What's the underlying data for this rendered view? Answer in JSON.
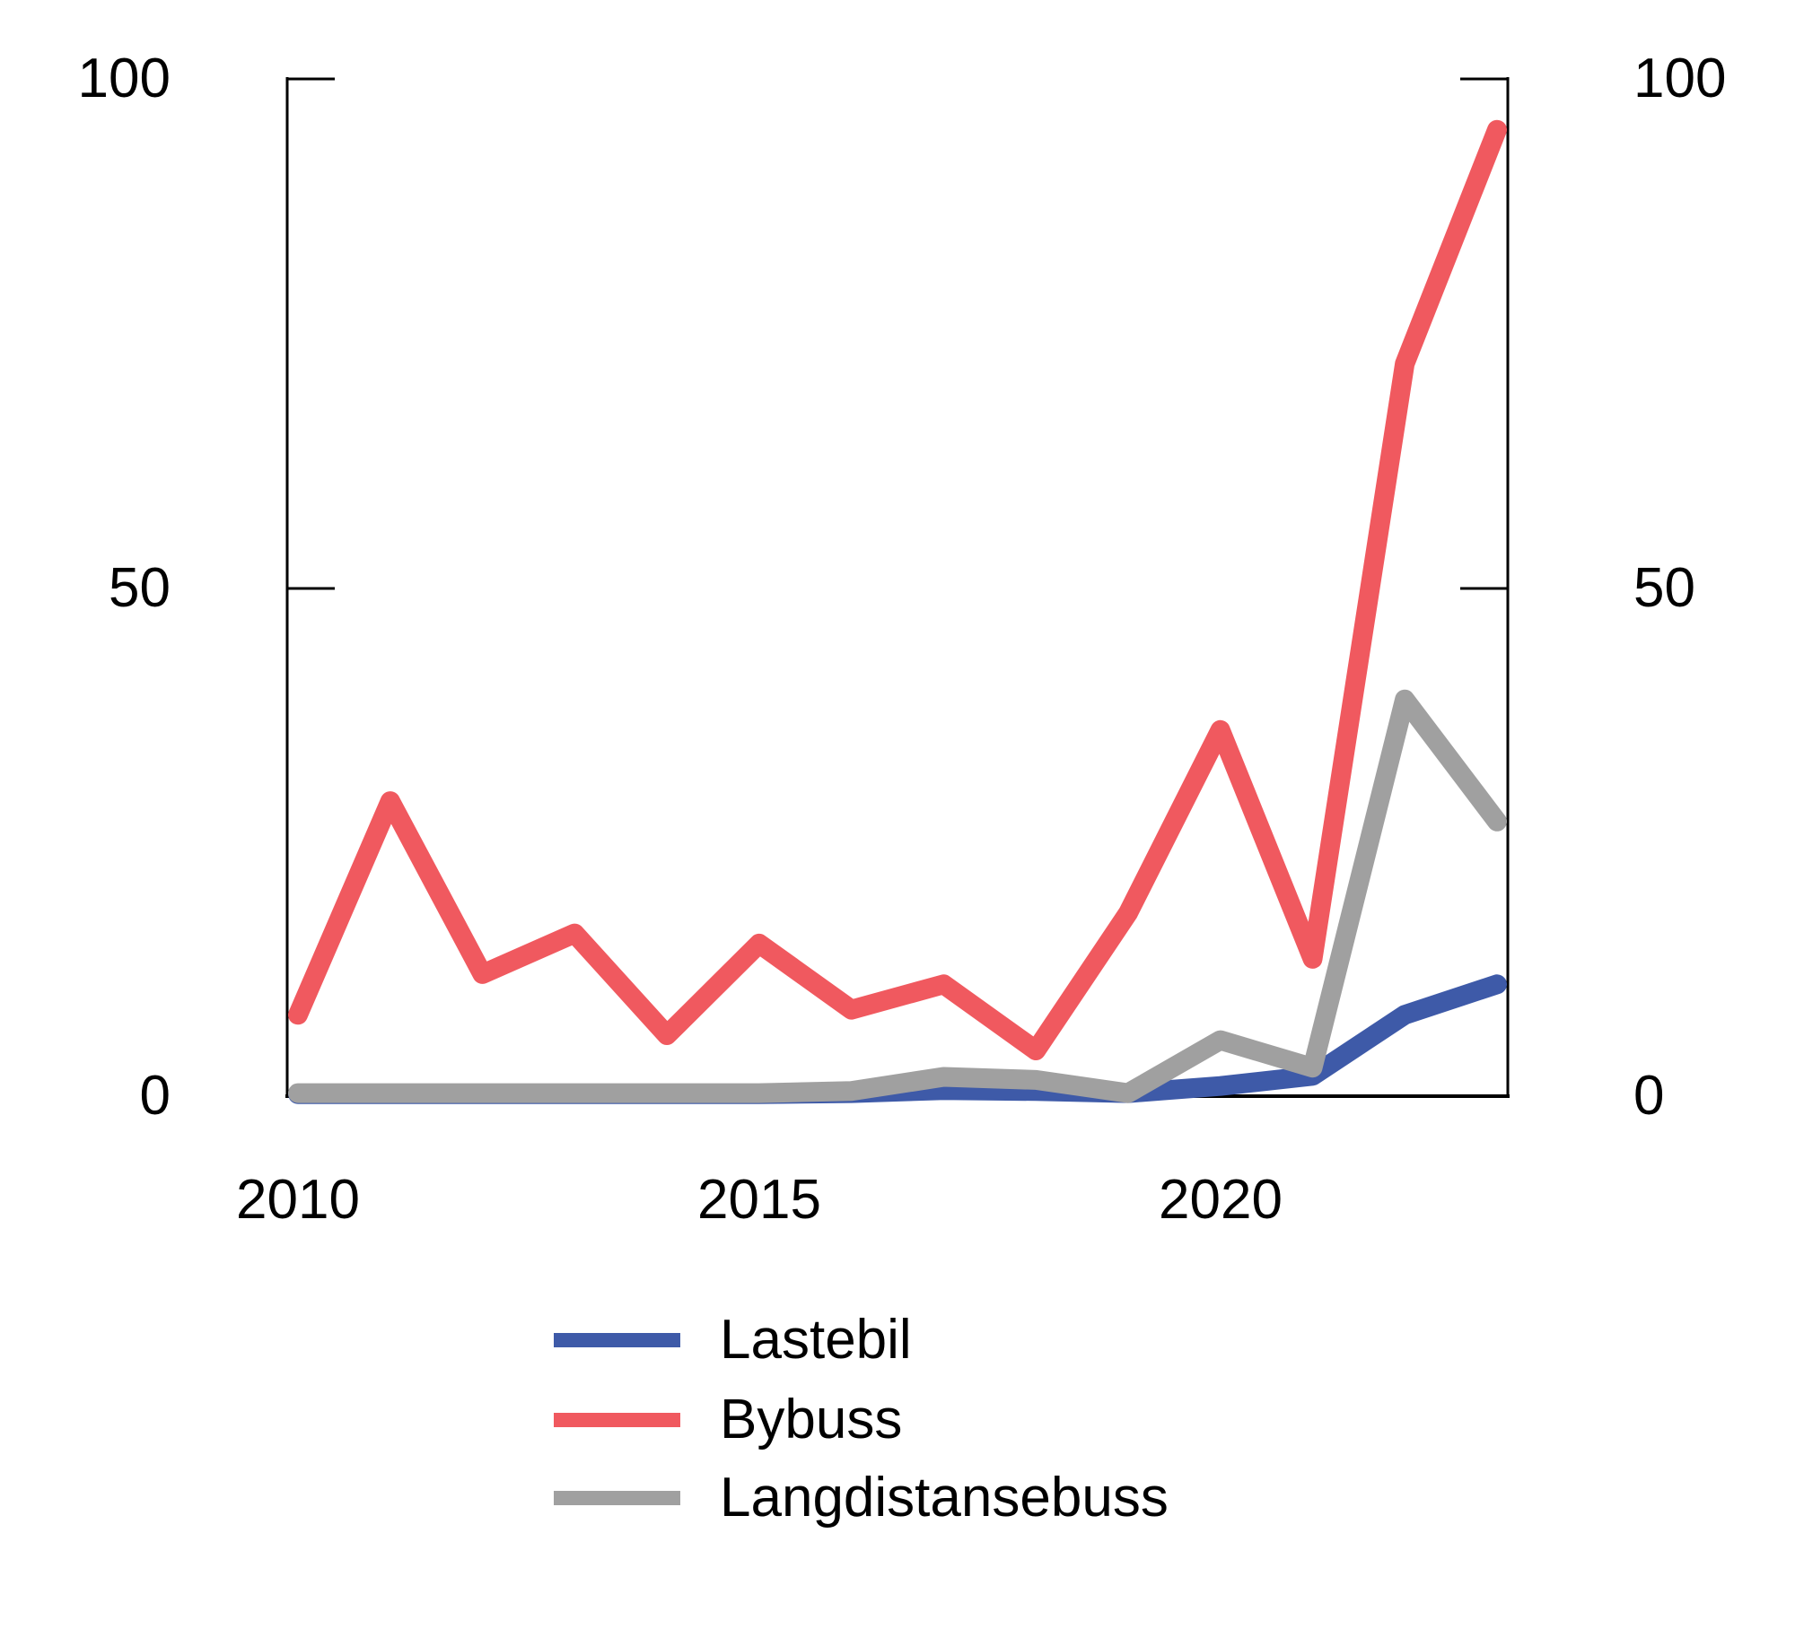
{
  "axes": {
    "y_left": [
      "100",
      "50",
      "0"
    ],
    "y_right": [
      "100",
      "50",
      "0"
    ],
    "x_labels": [
      "2010",
      "2015",
      "2020"
    ]
  },
  "legend": {
    "items": [
      {
        "label": "Lastebil",
        "color": "#3E5AA8"
      },
      {
        "label": "Bybuss",
        "color": "#F0595F"
      },
      {
        "label": "Langdistansebuss",
        "color": "#A0A0A0"
      }
    ]
  },
  "chart_data": {
    "type": "line",
    "title": "",
    "xlabel": "",
    "ylabel": "",
    "x": [
      2010,
      2011,
      2012,
      2013,
      2014,
      2015,
      2016,
      2017,
      2018,
      2019,
      2020,
      2021,
      2022,
      2023
    ],
    "x_tick_labels": [
      "2010",
      "2015",
      "2020"
    ],
    "ylim": [
      0,
      100
    ],
    "y_ticks": [
      0,
      50,
      100
    ],
    "grid": false,
    "legend_position": "bottom",
    "series": [
      {
        "name": "Lastebil",
        "color": "#3E5AA8",
        "values": [
          0.2,
          0.2,
          0.2,
          0.2,
          0.2,
          0.2,
          0.3,
          0.6,
          0.5,
          0.3,
          1,
          2,
          8,
          11
        ]
      },
      {
        "name": "Bybuss",
        "color": "#F0595F",
        "values": [
          8,
          29,
          12,
          16,
          6,
          15,
          8.5,
          11,
          4.5,
          18,
          36,
          13.5,
          72,
          95
        ]
      },
      {
        "name": "Langdistansebuss",
        "color": "#A0A0A0",
        "values": [
          0.3,
          0.3,
          0.3,
          0.3,
          0.3,
          0.3,
          0.5,
          1.9,
          1.6,
          0.3,
          5.5,
          2.8,
          39,
          27
        ]
      }
    ]
  }
}
